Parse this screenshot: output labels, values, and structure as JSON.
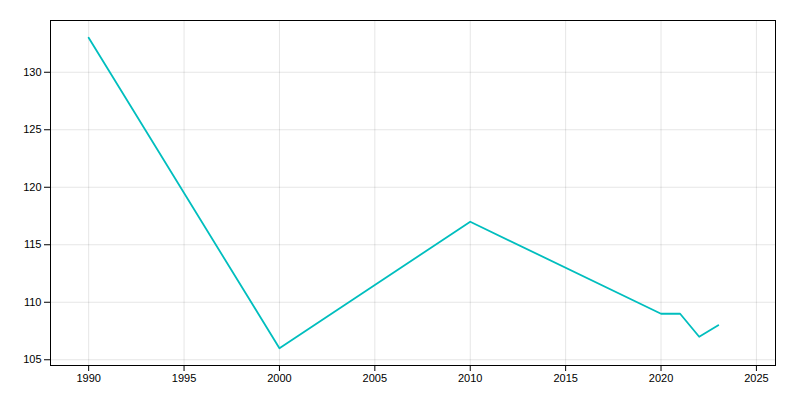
{
  "chart_data": {
    "type": "line",
    "x": [
      1990,
      2000,
      2010,
      2020,
      2021,
      2022,
      2023
    ],
    "values": [
      133,
      106,
      117,
      109,
      109,
      107,
      108
    ],
    "color": "#00BEBE",
    "xlim": [
      1988,
      2026
    ],
    "ylim": [
      104.5,
      134.5
    ],
    "xticks": [
      1990,
      1995,
      2000,
      2005,
      2010,
      2015,
      2020,
      2025
    ],
    "yticks": [
      105,
      110,
      115,
      120,
      125,
      130
    ],
    "grid": true
  }
}
